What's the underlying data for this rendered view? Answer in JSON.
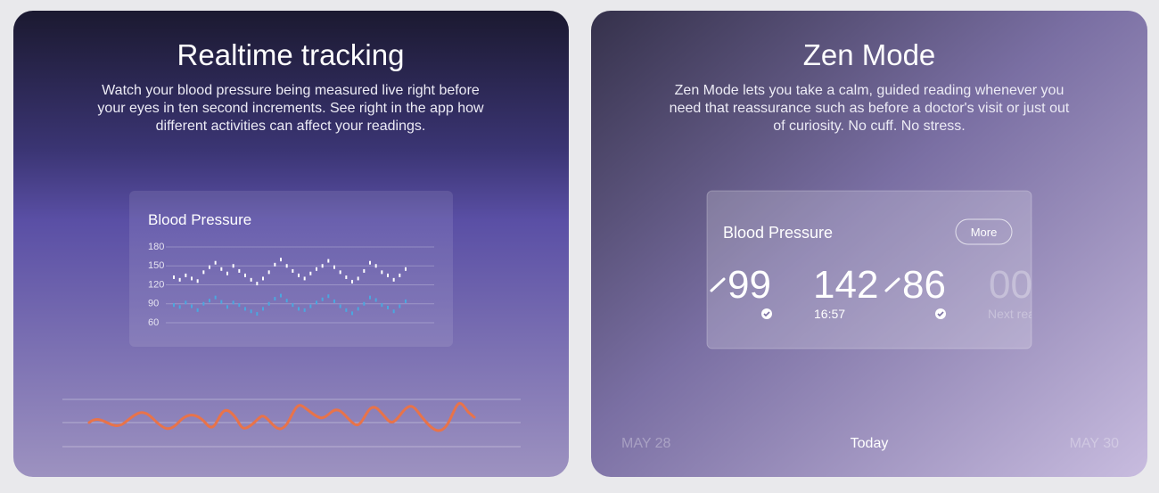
{
  "cards": [
    {
      "title": "Realtime tracking",
      "description": [
        "Watch your blood pressure being measured live right before",
        "your eyes in ten second increments. See right in the app how",
        "different activities can affect your readings."
      ],
      "panel": {
        "title": "Blood Pressure",
        "ylim": [
          60,
          180
        ],
        "yticks": [
          180,
          150,
          120,
          90,
          60
        ],
        "series": [
          {
            "color": "#ffffff",
            "values": [
              132,
              128,
              135,
              130,
              126,
              140,
              148,
              155,
              145,
              138,
              150,
              142,
              135,
              128,
              122,
              130,
              140,
              152,
              160,
              150,
              142,
              135,
              130,
              138,
              145,
              150,
              158,
              148,
              140,
              132,
              125,
              130,
              142,
              155,
              150,
              140,
              135,
              128,
              135,
              145
            ]
          },
          {
            "color": "#4aa8e0",
            "values": [
              88,
              85,
              92,
              86,
              80,
              90,
              95,
              100,
              93,
              85,
              92,
              88,
              82,
              78,
              74,
              82,
              90,
              98,
              103,
              95,
              88,
              82,
              80,
              86,
              92,
              97,
              102,
              94,
              86,
              80,
              75,
              82,
              90,
              100,
              96,
              88,
              84,
              78,
              86,
              94
            ]
          }
        ]
      }
    },
    {
      "title": "Zen Mode",
      "description": [
        "Zen Mode lets you take a calm, guided reading whenever you",
        "need that reassurance such as before a doctor's visit or just out",
        "of curiosity. No cuff. No stress."
      ],
      "panel": {
        "title": "Blood Pressure",
        "button": "More",
        "readings": [
          {
            "diastolic": 99
          },
          {
            "systolic": 142,
            "diastolic": 86,
            "time": "16:57"
          },
          {
            "value": "00",
            "caption": "Next reading"
          }
        ]
      },
      "dates": [
        "MAY 28",
        "Today",
        "MAY 30"
      ]
    }
  ]
}
